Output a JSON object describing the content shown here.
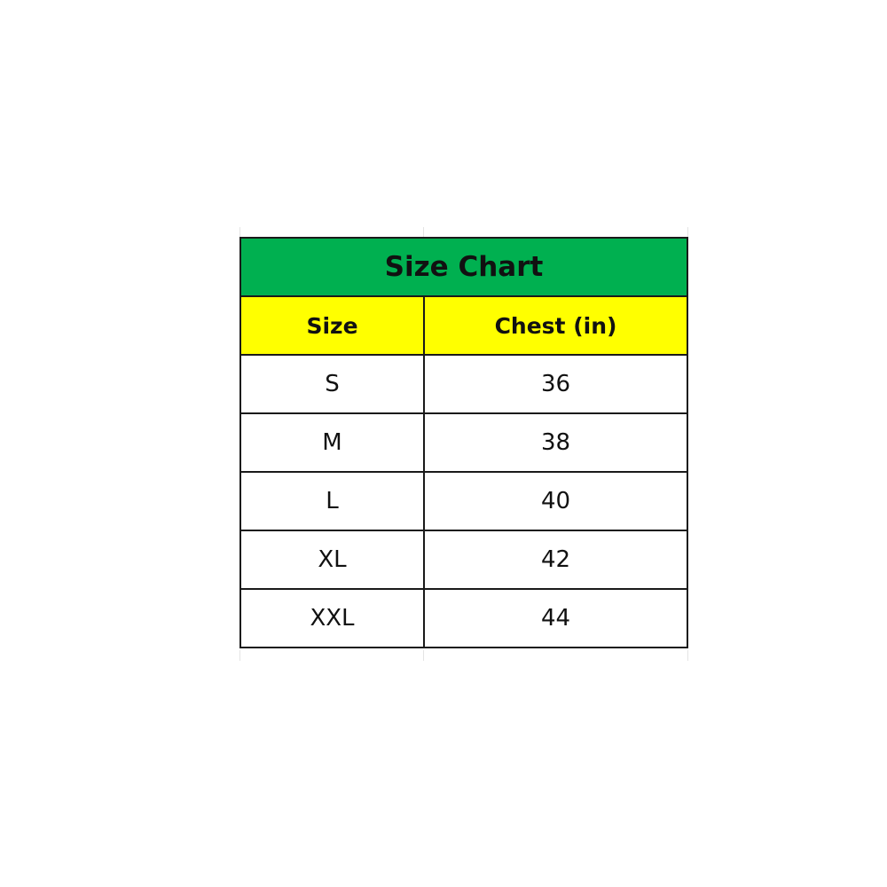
{
  "table": {
    "title": "Size Chart",
    "title_bg": "#00b050",
    "header_bg": "#ffff00",
    "headers": [
      "Size",
      "Chest (in)"
    ],
    "rows": [
      [
        "S",
        "36"
      ],
      [
        "M",
        "38"
      ],
      [
        "L",
        "40"
      ],
      [
        "XL",
        "42"
      ],
      [
        "XXL",
        "44"
      ]
    ]
  }
}
